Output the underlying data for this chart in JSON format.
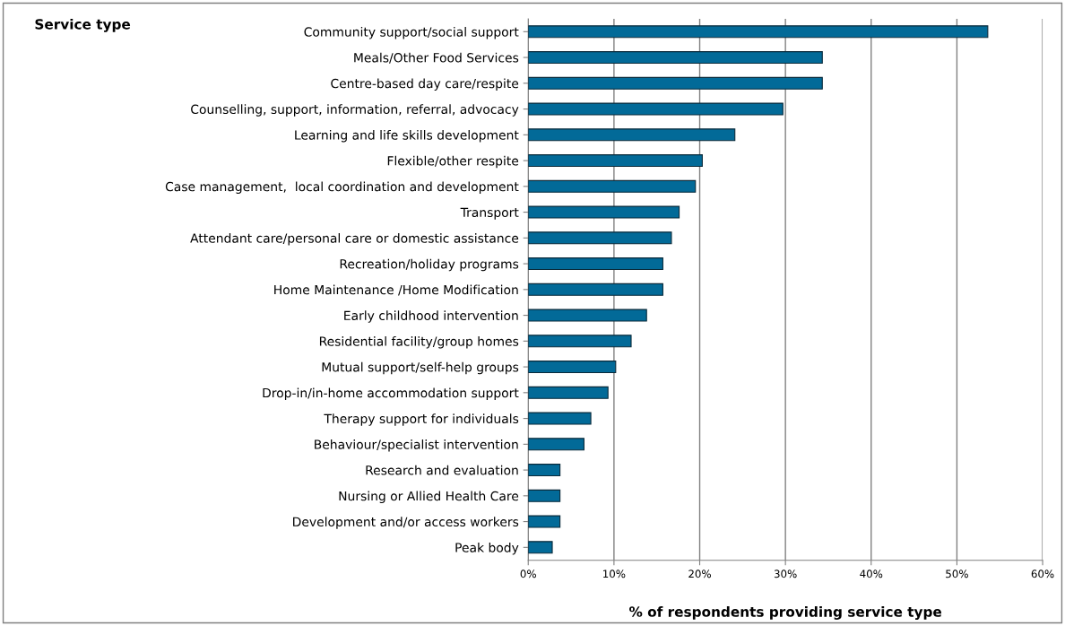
{
  "chart_data": {
    "type": "bar",
    "orientation": "horizontal",
    "ylabel": "Service type",
    "xlabel": "% of respondents providing service type",
    "categories": [
      "Community support/social support",
      "Meals/Other Food Services",
      "Centre-based day care/respite",
      "Counselling, support, information, referral, advocacy",
      "Learning and life skills development",
      "Flexible/other respite",
      "Case management,  local coordination and development",
      "Transport",
      "Attendant care/personal care or domestic assistance",
      "Recreation/holiday programs",
      "Home Maintenance /Home Modification",
      "Early childhood intervention",
      "Residential facility/group homes",
      "Mutual support/self-help groups",
      "Drop-in/in-home accommodation support",
      "Therapy support for individuals",
      "Behaviour/specialist intervention",
      "Research and evaluation",
      "Nursing or Allied Health Care",
      "Development and/or access workers",
      "Peak body"
    ],
    "values": [
      53.6,
      34.3,
      34.3,
      29.7,
      24.1,
      20.3,
      19.5,
      17.6,
      16.7,
      15.7,
      15.7,
      13.8,
      12.0,
      10.2,
      9.3,
      7.3,
      6.5,
      3.7,
      3.7,
      3.7,
      2.8
    ],
    "color": "#026a98",
    "xlim": [
      0,
      60
    ],
    "xticks": [
      {
        "value": 0,
        "label": "0%"
      },
      {
        "value": 10,
        "label": "10%"
      },
      {
        "value": 20,
        "label": "20%"
      },
      {
        "value": 30,
        "label": "30%"
      },
      {
        "value": 40,
        "label": "40%"
      },
      {
        "value": 50,
        "label": "50%"
      },
      {
        "value": 60,
        "label": "60%"
      }
    ],
    "grid": "x",
    "legend": false
  }
}
